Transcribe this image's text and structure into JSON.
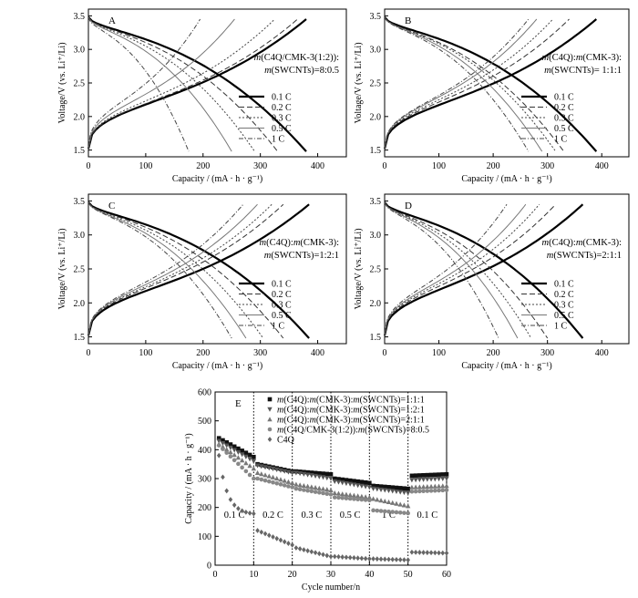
{
  "chart_data": [
    {
      "id": "A",
      "type": "line",
      "panel_label": "A",
      "xlabel": "Capacity / (mA · h · g⁻¹)",
      "ylabel": "Voltage/V (vs. Li⁺/Li)",
      "xlim": [
        0,
        450
      ],
      "ylim": [
        1.4,
        3.6
      ],
      "xticks": [
        0,
        100,
        200,
        300,
        400
      ],
      "yticks": [
        1.5,
        2.0,
        2.5,
        3.0,
        3.5
      ],
      "annotation": [
        "m(C4Q/CMK-3(1:2)):",
        "m(SWCNTs)=8:0.5"
      ],
      "legend": [
        "0.1 C",
        "0.2 C",
        "0.3 C",
        "0.5 C",
        "1 C"
      ],
      "legend_position": "lower-right",
      "series": [
        {
          "name": "0.1 C",
          "discharge_capacity": 380,
          "charge_capacity": 380
        },
        {
          "name": "0.2 C",
          "discharge_capacity": 330,
          "charge_capacity": 365
        },
        {
          "name": "0.3 C",
          "discharge_capacity": 290,
          "charge_capacity": 325
        },
        {
          "name": "0.5 C",
          "discharge_capacity": 250,
          "charge_capacity": 255
        },
        {
          "name": "1 C",
          "discharge_capacity": 175,
          "charge_capacity": 195
        }
      ]
    },
    {
      "id": "B",
      "type": "line",
      "panel_label": "B",
      "xlabel": "Capacity / (mA · h · g⁻¹)",
      "ylabel": "Voltage/V (vs. Li⁺/Li)",
      "xlim": [
        0,
        450
      ],
      "ylim": [
        1.4,
        3.6
      ],
      "xticks": [
        0,
        100,
        200,
        300,
        400
      ],
      "yticks": [
        1.5,
        2.0,
        2.5,
        3.0,
        3.5
      ],
      "annotation": [
        "m(C4Q):m(CMK-3):",
        "m(SWCNTs)= 1:1:1"
      ],
      "legend": [
        "0.1 C",
        "0.2 C",
        "0.3 C",
        "0.5 C",
        "1 C"
      ],
      "legend_position": "lower-right",
      "series": [
        {
          "name": "0.1 C",
          "discharge_capacity": 390,
          "charge_capacity": 390
        },
        {
          "name": "0.2 C",
          "discharge_capacity": 330,
          "charge_capacity": 340
        },
        {
          "name": "0.3 C",
          "discharge_capacity": 315,
          "charge_capacity": 310
        },
        {
          "name": "0.5 C",
          "discharge_capacity": 290,
          "charge_capacity": 280
        },
        {
          "name": "1 C",
          "discharge_capacity": 265,
          "charge_capacity": 265
        }
      ]
    },
    {
      "id": "C",
      "type": "line",
      "panel_label": "C",
      "xlabel": "Capacity / (mA · h · g⁻¹)",
      "ylabel": "Voltage/V (vs. Li⁺/Li)",
      "xlim": [
        0,
        450
      ],
      "ylim": [
        1.4,
        3.6
      ],
      "xticks": [
        0,
        100,
        200,
        300,
        400
      ],
      "yticks": [
        1.5,
        2.0,
        2.5,
        3.0,
        3.5
      ],
      "annotation": [
        "m(C4Q):m(CMK-3):",
        "m(SWCNTs)=1:2:1"
      ],
      "legend": [
        "0.1 C",
        "0.2 C",
        "0.3 C",
        "0.5 C",
        "1 C"
      ],
      "legend_position": "lower-right",
      "series": [
        {
          "name": "0.1 C",
          "discharge_capacity": 385,
          "charge_capacity": 385
        },
        {
          "name": "0.2 C",
          "discharge_capacity": 340,
          "charge_capacity": 340
        },
        {
          "name": "0.3 C",
          "discharge_capacity": 305,
          "charge_capacity": 320
        },
        {
          "name": "0.5 C",
          "discharge_capacity": 275,
          "charge_capacity": 295
        },
        {
          "name": "1 C",
          "discharge_capacity": 250,
          "charge_capacity": 270
        }
      ]
    },
    {
      "id": "D",
      "type": "line",
      "panel_label": "D",
      "xlabel": "Capacity / (mA · h · g⁻¹)",
      "ylabel": "Voltage/V (vs. Li⁺/Li)",
      "xlim": [
        0,
        450
      ],
      "ylim": [
        1.4,
        3.6
      ],
      "xticks": [
        0,
        100,
        200,
        300,
        400
      ],
      "yticks": [
        1.5,
        2.0,
        2.5,
        3.0,
        3.5
      ],
      "annotation": [
        "m(C4Q):m(CMK-3):",
        "m(SWCNTs)=2:1:1"
      ],
      "legend": [
        "0.1 C",
        "0.2 C",
        "0.3 C",
        "0.5 C",
        "1 C"
      ],
      "legend_position": "lower-right",
      "series": [
        {
          "name": "0.1 C",
          "discharge_capacity": 365,
          "charge_capacity": 365
        },
        {
          "name": "0.2 C",
          "discharge_capacity": 300,
          "charge_capacity": 315
        },
        {
          "name": "0.3 C",
          "discharge_capacity": 270,
          "charge_capacity": 285
        },
        {
          "name": "0.5 C",
          "discharge_capacity": 245,
          "charge_capacity": 260
        },
        {
          "name": "1 C",
          "discharge_capacity": 210,
          "charge_capacity": 225
        }
      ]
    },
    {
      "id": "E",
      "type": "scatter",
      "panel_label": "E",
      "xlabel": "Cycle number/n",
      "ylabel": "Capacity / (mA · h · g⁻¹)",
      "xlim": [
        0,
        60
      ],
      "ylim": [
        0,
        600
      ],
      "xticks": [
        0,
        10,
        20,
        30,
        40,
        50,
        60
      ],
      "yticks": [
        0,
        100,
        200,
        300,
        400,
        500,
        600
      ],
      "rate_dividers": [
        10,
        20,
        30,
        40,
        50,
        60
      ],
      "rate_labels": [
        "0.1 C",
        "0.2 C",
        "0.3 C",
        "0.5 C",
        "1 C",
        "0.1 C"
      ],
      "legend_position": "top",
      "series": [
        {
          "name": "m(C4Q):m(CMK-3):m(SWCNTs)=1:1:1",
          "marker": "square",
          "segments": [
            [
              440,
              375
            ],
            [
              350,
              325
            ],
            [
              325,
              315
            ],
            [
              300,
              285
            ],
            [
              275,
              265
            ],
            [
              310,
              315
            ]
          ]
        },
        {
          "name": "m(C4Q):m(CMK-3):m(SWCNTs)=1:2:1",
          "marker": "triangle-down",
          "segments": [
            [
              430,
              360
            ],
            [
              345,
              320
            ],
            [
              320,
              300
            ],
            [
              290,
              270
            ],
            [
              265,
              250
            ],
            [
              295,
              300
            ]
          ]
        },
        {
          "name": "m(C4Q):m(CMK-3):m(SWCNTs)=2:1:1",
          "marker": "triangle-up",
          "segments": [
            [
              420,
              335
            ],
            [
              320,
              285
            ],
            [
              280,
              260
            ],
            [
              250,
              235
            ],
            [
              230,
              205
            ],
            [
              270,
              275
            ]
          ]
        },
        {
          "name": "m(C4Q/CMK-3(1:2)):m(SWCNTs)=8:0.5",
          "marker": "circle",
          "segments": [
            [
              415,
              300
            ],
            [
              300,
              270
            ],
            [
              265,
              245
            ],
            [
              235,
              225
            ],
            [
              190,
              180
            ],
            [
              255,
              260
            ]
          ]
        },
        {
          "name": "C4Q",
          "marker": "diamond",
          "segments": [
            [
              380,
              175
            ],
            [
              120,
              70
            ],
            [
              60,
              30
            ],
            [
              30,
              22
            ],
            [
              22,
              18
            ],
            [
              45,
              42
            ]
          ]
        }
      ]
    }
  ]
}
